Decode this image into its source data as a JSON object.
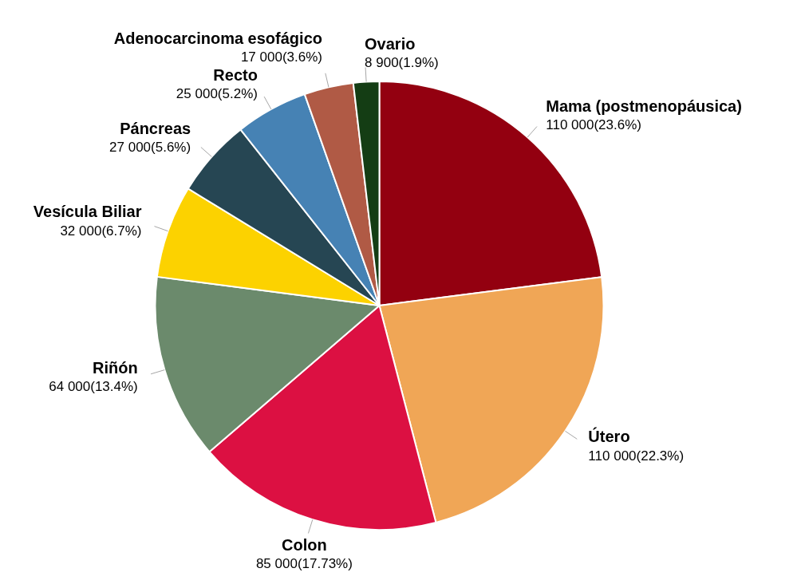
{
  "chart_data": {
    "type": "pie",
    "categories": [
      "Mama (postmenopáusica)",
      "Útero",
      "Colon",
      "Riñón",
      "Vesícula Biliar",
      "Páncreas",
      "Recto",
      "Adenocarcinoma esofágico",
      "Ovario"
    ],
    "values": [
      110000,
      110000,
      85000,
      64000,
      32000,
      27000,
      25000,
      17000,
      8900
    ],
    "value_labels": [
      "110 000(23.6%)",
      "110 000(22.3%)",
      "85 000(17.73%)",
      "64 000(13.4%)",
      "32 000(6.7%)",
      "27 000(5.6%)",
      "25 000(5.2%)",
      "17 000(3.6%)",
      "8 900(1.9%)"
    ],
    "colors": [
      "#930010",
      "#f0a656",
      "#dc1042",
      "#6b8a6c",
      "#fcd200",
      "#264653",
      "#4682b4",
      "#b05a45",
      "#143d14"
    ],
    "legend": false
  }
}
